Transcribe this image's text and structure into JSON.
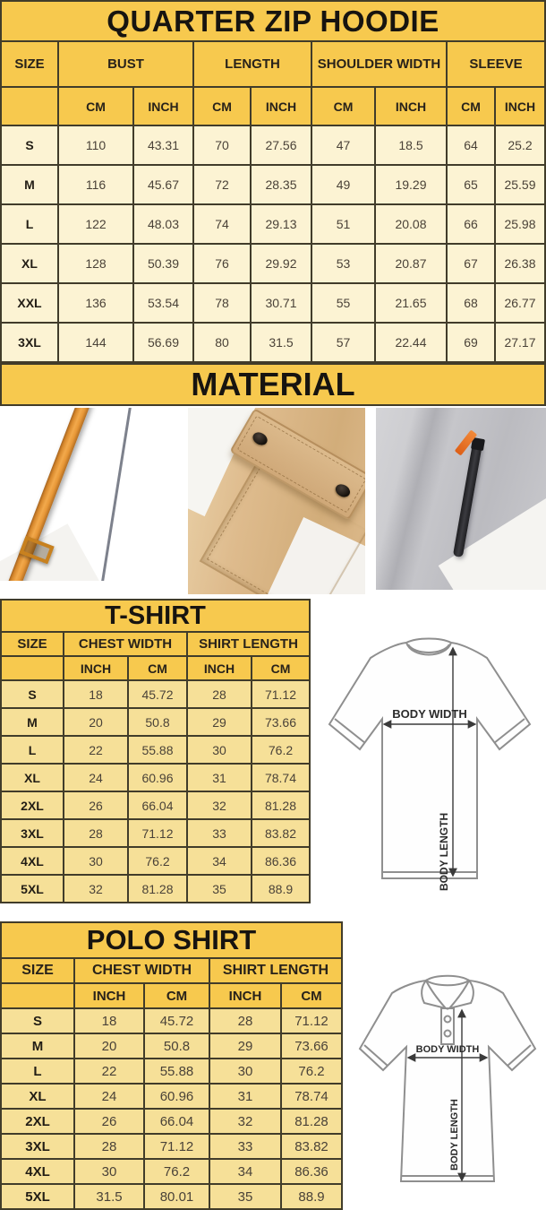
{
  "colors": {
    "band_yellow": "#f7c94e",
    "hoodie_row_cream": "#fcf3d3",
    "shirt_row_gold": "#f6e098",
    "grid_line": "#413c2a",
    "strap_orange": "#e89838",
    "zip_pull_orange": "#dd5f17"
  },
  "hoodie": {
    "title": "QUARTER ZIP HOODIE",
    "size_header": "SIZE",
    "groups": [
      "BUST",
      "LENGTH",
      "SHOULDER WIDTH",
      "SLEEVE"
    ],
    "units": [
      "CM",
      "INCH",
      "CM",
      "INCH",
      "CM",
      "INCH",
      "CM",
      "INCH"
    ],
    "rows": [
      {
        "size": "S",
        "values": [
          "110",
          "43.31",
          "70",
          "27.56",
          "47",
          "18.5",
          "64",
          "25.2"
        ]
      },
      {
        "size": "M",
        "values": [
          "116",
          "45.67",
          "72",
          "28.35",
          "49",
          "19.29",
          "65",
          "25.59"
        ]
      },
      {
        "size": "L",
        "values": [
          "122",
          "48.03",
          "74",
          "29.13",
          "51",
          "20.08",
          "66",
          "25.98"
        ]
      },
      {
        "size": "XL",
        "values": [
          "128",
          "50.39",
          "76",
          "29.92",
          "53",
          "20.87",
          "67",
          "26.38"
        ]
      },
      {
        "size": "XXL",
        "values": [
          "136",
          "53.54",
          "78",
          "30.71",
          "55",
          "21.65",
          "68",
          "26.77"
        ]
      },
      {
        "size": "3XL",
        "values": [
          "144",
          "56.69",
          "80",
          "31.5",
          "57",
          "22.44",
          "69",
          "27.17"
        ]
      }
    ]
  },
  "material": {
    "title": "MATERIAL",
    "photos": [
      {
        "name": "navy-fleece-with-orange-drawstring"
      },
      {
        "name": "khaki-fabric-snap-flap-pocket"
      },
      {
        "name": "gray-fleece-zip-pocket-orange-pull"
      }
    ]
  },
  "tshirt": {
    "title": "T-SHIRT",
    "size_header": "SIZE",
    "groups": [
      "CHEST WIDTH",
      "SHIRT LENGTH"
    ],
    "units": [
      "INCH",
      "CM",
      "INCH",
      "CM"
    ],
    "rows": [
      {
        "size": "S",
        "values": [
          "18",
          "45.72",
          "28",
          "71.12"
        ]
      },
      {
        "size": "M",
        "values": [
          "20",
          "50.8",
          "29",
          "73.66"
        ]
      },
      {
        "size": "L",
        "values": [
          "22",
          "55.88",
          "30",
          "76.2"
        ]
      },
      {
        "size": "XL",
        "values": [
          "24",
          "60.96",
          "31",
          "78.74"
        ]
      },
      {
        "size": "2XL",
        "values": [
          "26",
          "66.04",
          "32",
          "81.28"
        ]
      },
      {
        "size": "3XL",
        "values": [
          "28",
          "71.12",
          "33",
          "83.82"
        ]
      },
      {
        "size": "4XL",
        "values": [
          "30",
          "76.2",
          "34",
          "86.36"
        ]
      },
      {
        "size": "5XL",
        "values": [
          "32",
          "81.28",
          "35",
          "88.9"
        ]
      }
    ],
    "diagram": {
      "width_label": "BODY WIDTH",
      "length_label": "BODY LENGTH"
    }
  },
  "polo": {
    "title": "POLO SHIRT",
    "size_header": "SIZE",
    "groups": [
      "CHEST WIDTH",
      "SHIRT LENGTH"
    ],
    "units": [
      "INCH",
      "CM",
      "INCH",
      "CM"
    ],
    "rows": [
      {
        "size": "S",
        "values": [
          "18",
          "45.72",
          "28",
          "71.12"
        ]
      },
      {
        "size": "M",
        "values": [
          "20",
          "50.8",
          "29",
          "73.66"
        ]
      },
      {
        "size": "L",
        "values": [
          "22",
          "55.88",
          "30",
          "76.2"
        ]
      },
      {
        "size": "XL",
        "values": [
          "24",
          "60.96",
          "31",
          "78.74"
        ]
      },
      {
        "size": "2XL",
        "values": [
          "26",
          "66.04",
          "32",
          "81.28"
        ]
      },
      {
        "size": "3XL",
        "values": [
          "28",
          "71.12",
          "33",
          "83.82"
        ]
      },
      {
        "size": "4XL",
        "values": [
          "30",
          "76.2",
          "34",
          "86.36"
        ]
      },
      {
        "size": "5XL",
        "values": [
          "31.5",
          "80.01",
          "35",
          "88.9"
        ]
      }
    ],
    "diagram": {
      "width_label": "BODY WIDTH",
      "length_label": "BODY LENGTH"
    }
  }
}
